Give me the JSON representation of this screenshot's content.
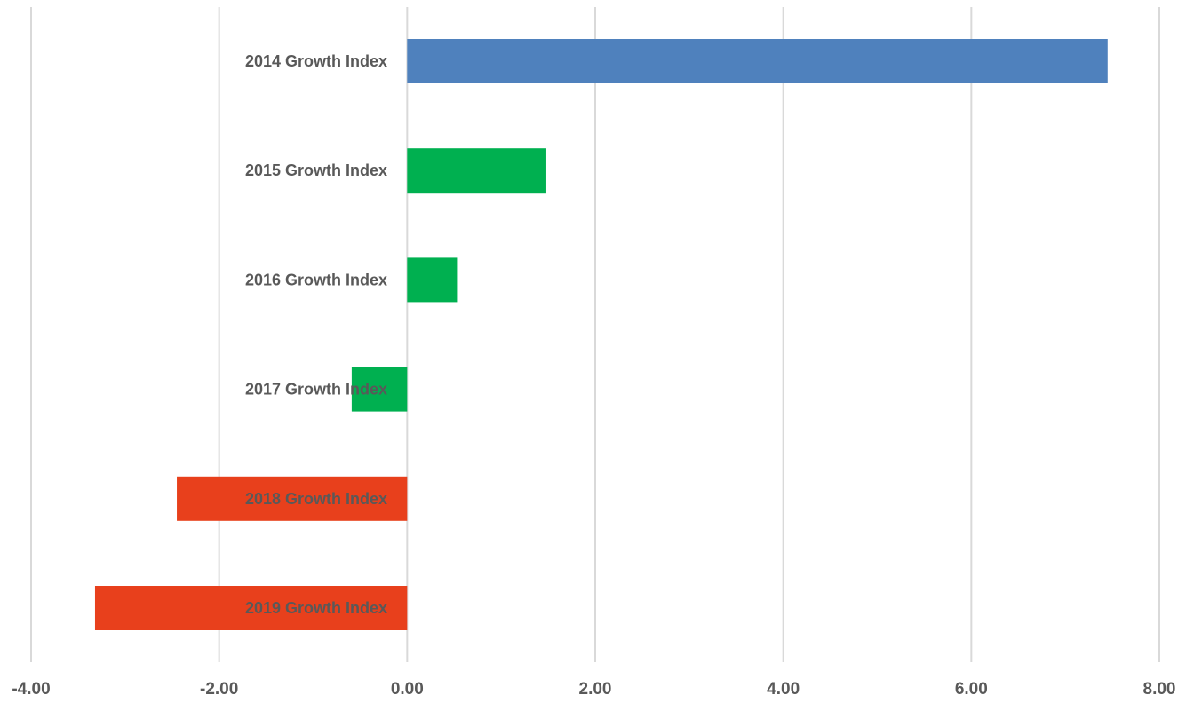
{
  "chart_data": {
    "type": "bar",
    "orientation": "horizontal",
    "title": "",
    "xlabel": "",
    "ylabel": "",
    "categories": [
      "2014 Growth Index",
      "2015 Growth Index",
      "2016 Growth Index",
      "2017 Growth Index",
      "2018 Growth Index",
      "2019 Growth Index"
    ],
    "values": [
      7.45,
      1.48,
      0.53,
      -0.59,
      -2.45,
      -3.32
    ],
    "bar_colors": [
      "#4f81bd",
      "#00b050",
      "#00b050",
      "#00b050",
      "#e8401c",
      "#e8401c"
    ],
    "xlim": [
      -4,
      8
    ],
    "xticks": [
      "-4.00",
      "-2.00",
      "0.00",
      "2.00",
      "4.00",
      "6.00",
      "8.00"
    ],
    "grid": "vertical",
    "legend": "none"
  }
}
